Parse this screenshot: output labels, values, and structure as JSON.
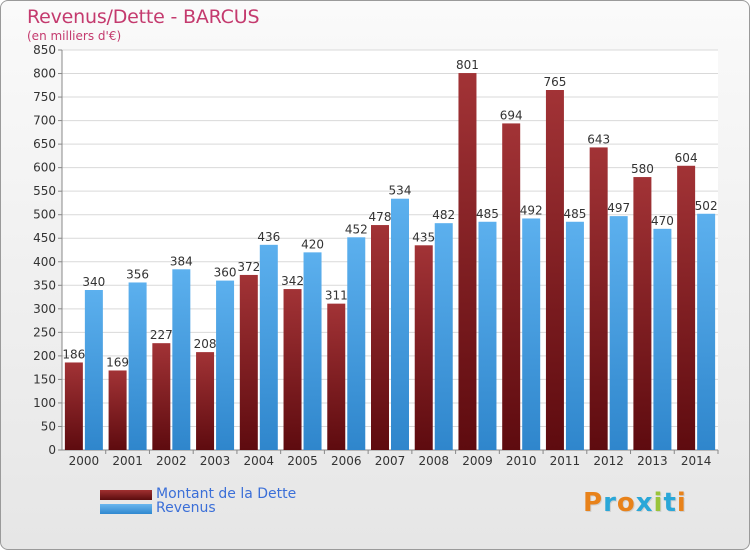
{
  "header": {
    "title": "Revenus/Dette - BARCUS",
    "subtitle": "(en milliers d'€)"
  },
  "legend": {
    "dette_label": "Montant de la Dette",
    "revenus_label": "Revenus"
  },
  "logo": {
    "text": "Proxiti",
    "letters": [
      {
        "ch": "P",
        "color": "#e8821a"
      },
      {
        "ch": "r",
        "color": "#2aa7d8"
      },
      {
        "ch": "o",
        "color": "#e8821a"
      },
      {
        "ch": "x",
        "color": "#2aa7d8"
      },
      {
        "ch": "i",
        "color": "#9ac43a"
      },
      {
        "ch": "t",
        "color": "#2aa7d8"
      },
      {
        "ch": "i",
        "color": "#e8821a"
      }
    ]
  },
  "colors": {
    "dette": "#7a1518",
    "revenus": "#3f9be0",
    "title": "#c43a6e",
    "legend_text": "#3b6fd8"
  },
  "chart_data": {
    "type": "bar",
    "categories": [
      "2000",
      "2001",
      "2002",
      "2003",
      "2004",
      "2005",
      "2006",
      "2007",
      "2008",
      "2009",
      "2010",
      "2011",
      "2012",
      "2013",
      "2014"
    ],
    "series": [
      {
        "name": "Montant de la Dette",
        "values": [
          186,
          169,
          227,
          208,
          372,
          342,
          311,
          478,
          435,
          801,
          694,
          765,
          643,
          580,
          604
        ]
      },
      {
        "name": "Revenus",
        "values": [
          340,
          356,
          384,
          360,
          436,
          420,
          452,
          534,
          482,
          485,
          492,
          485,
          497,
          470,
          502
        ]
      }
    ],
    "ylim": [
      0,
      850
    ],
    "yticks": [
      0,
      50,
      100,
      150,
      200,
      250,
      300,
      350,
      400,
      450,
      500,
      550,
      600,
      650,
      700,
      750,
      800,
      850
    ],
    "grid": true,
    "legend_position": "bottom-left"
  }
}
